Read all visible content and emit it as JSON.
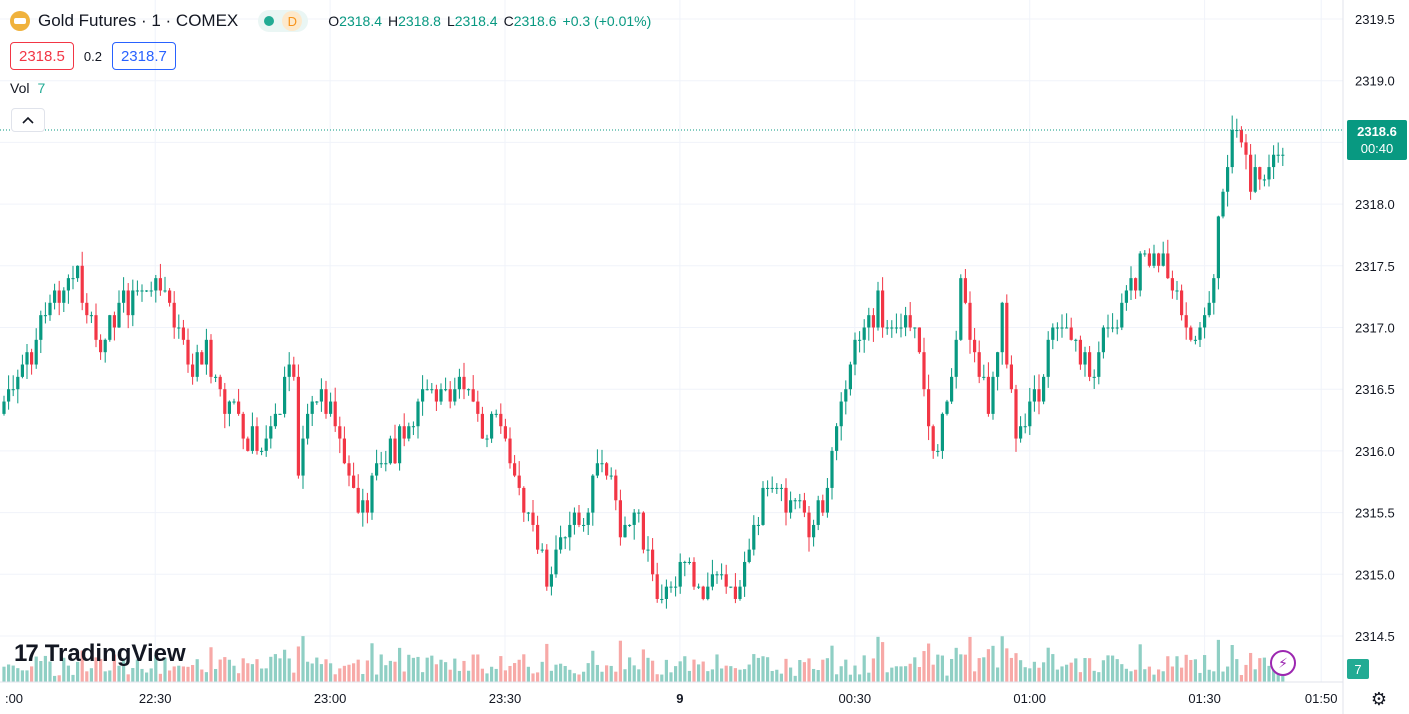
{
  "header": {
    "symbol_title": "Gold Futures · 1 · COMEX",
    "status_letter": "D",
    "ohlc": {
      "open_label": "O",
      "open": "2318.4",
      "high_label": "H",
      "high": "2318.8",
      "low_label": "L",
      "low": "2318.4",
      "close_label": "C",
      "close": "2318.6",
      "change": "+0.3 (+0.01%)"
    },
    "bid": "2318.5",
    "spread": "0.2",
    "ask": "2318.7",
    "volume_label": "Vol",
    "volume_value": "7",
    "collapse_icon": "chevron-up-icon"
  },
  "branding": {
    "logo_text": "TradingView",
    "logo_mark": "17"
  },
  "last_price_tag": {
    "price": "2318.6",
    "countdown": "00:40"
  },
  "volume_badge": "7",
  "colors": {
    "up": "#089981",
    "down": "#f23645",
    "up_vol": "#8fcfc4",
    "down_vol": "#f7a9a7",
    "grid": "#f0f3fa",
    "text": "#131722"
  },
  "chart_data": {
    "type": "candlestick",
    "y_ticks": [
      "2319.5",
      "2319.0",
      "2318.5",
      "2318.0",
      "2317.5",
      "2317.0",
      "2316.5",
      "2316.0",
      "2315.5",
      "2315.0",
      "2314.5"
    ],
    "x_ticks": [
      {
        "label": ":00",
        "minute": -90
      },
      {
        "label": "22:30",
        "minute": -60
      },
      {
        "label": "23:00",
        "minute": -30
      },
      {
        "label": "23:30",
        "minute": 0
      },
      {
        "label": "9",
        "minute": 30
      },
      {
        "label": "00:30",
        "minute": 60
      },
      {
        "label": "01:00",
        "minute": 90
      },
      {
        "label": "01:30",
        "minute": 120
      },
      {
        "label": "01:50",
        "minute": 140
      }
    ],
    "ylim": [
      2314.2,
      2319.65
    ],
    "last_price": 2318.6,
    "key_points": [
      [
        0,
        2316.4
      ],
      [
        4,
        2316.6
      ],
      [
        8,
        2317.0
      ],
      [
        12,
        2317.3
      ],
      [
        16,
        2317.5
      ],
      [
        20,
        2316.8
      ],
      [
        24,
        2317.1
      ],
      [
        30,
        2317.3
      ],
      [
        34,
        2317.4
      ],
      [
        37,
        2317.0
      ],
      [
        41,
        2316.6
      ],
      [
        44,
        2316.9
      ],
      [
        47,
        2316.4
      ],
      [
        50,
        2316.3
      ],
      [
        55,
        2316.0
      ],
      [
        60,
        2316.4
      ],
      [
        63,
        2316.6
      ],
      [
        64,
        2315.7
      ],
      [
        67,
        2316.5
      ],
      [
        70,
        2316.4
      ],
      [
        74,
        2316.0
      ],
      [
        78,
        2315.5
      ],
      [
        82,
        2315.9
      ],
      [
        86,
        2316.1
      ],
      [
        91,
        2316.4
      ],
      [
        96,
        2316.5
      ],
      [
        100,
        2316.6
      ],
      [
        104,
        2316.2
      ],
      [
        107,
        2316.4
      ],
      [
        110,
        2315.8
      ],
      [
        114,
        2315.5
      ],
      [
        118,
        2315.0
      ],
      [
        122,
        2315.4
      ],
      [
        126,
        2315.3
      ],
      [
        129,
        2315.9
      ],
      [
        132,
        2315.7
      ],
      [
        135,
        2315.3
      ],
      [
        138,
        2315.5
      ],
      [
        141,
        2315.0
      ],
      [
        144,
        2314.8
      ],
      [
        148,
        2315.1
      ],
      [
        152,
        2314.9
      ],
      [
        156,
        2315.0
      ],
      [
        160,
        2314.8
      ],
      [
        163,
        2315.5
      ],
      [
        167,
        2315.7
      ],
      [
        171,
        2315.6
      ],
      [
        175,
        2315.4
      ],
      [
        178,
        2315.6
      ],
      [
        182,
        2316.4
      ],
      [
        186,
        2317.0
      ],
      [
        190,
        2317.2
      ],
      [
        194,
        2317.0
      ],
      [
        198,
        2317.1
      ],
      [
        202,
        2315.9
      ],
      [
        205,
        2316.3
      ],
      [
        208,
        2317.3
      ],
      [
        211,
        2316.8
      ],
      [
        214,
        2316.3
      ],
      [
        217,
        2317.1
      ],
      [
        220,
        2316.0
      ],
      [
        224,
        2316.4
      ],
      [
        228,
        2316.9
      ],
      [
        232,
        2316.9
      ],
      [
        236,
        2316.6
      ],
      [
        240,
        2317.0
      ],
      [
        244,
        2317.3
      ],
      [
        248,
        2317.5
      ],
      [
        252,
        2317.5
      ],
      [
        256,
        2317.1
      ],
      [
        260,
        2316.9
      ],
      [
        263,
        2317.5
      ],
      [
        265,
        2318.1
      ],
      [
        268,
        2318.7
      ],
      [
        271,
        2318.1
      ],
      [
        275,
        2318.3
      ],
      [
        279,
        2318.6
      ]
    ],
    "candle_count": 280,
    "volume_tick": "7"
  }
}
